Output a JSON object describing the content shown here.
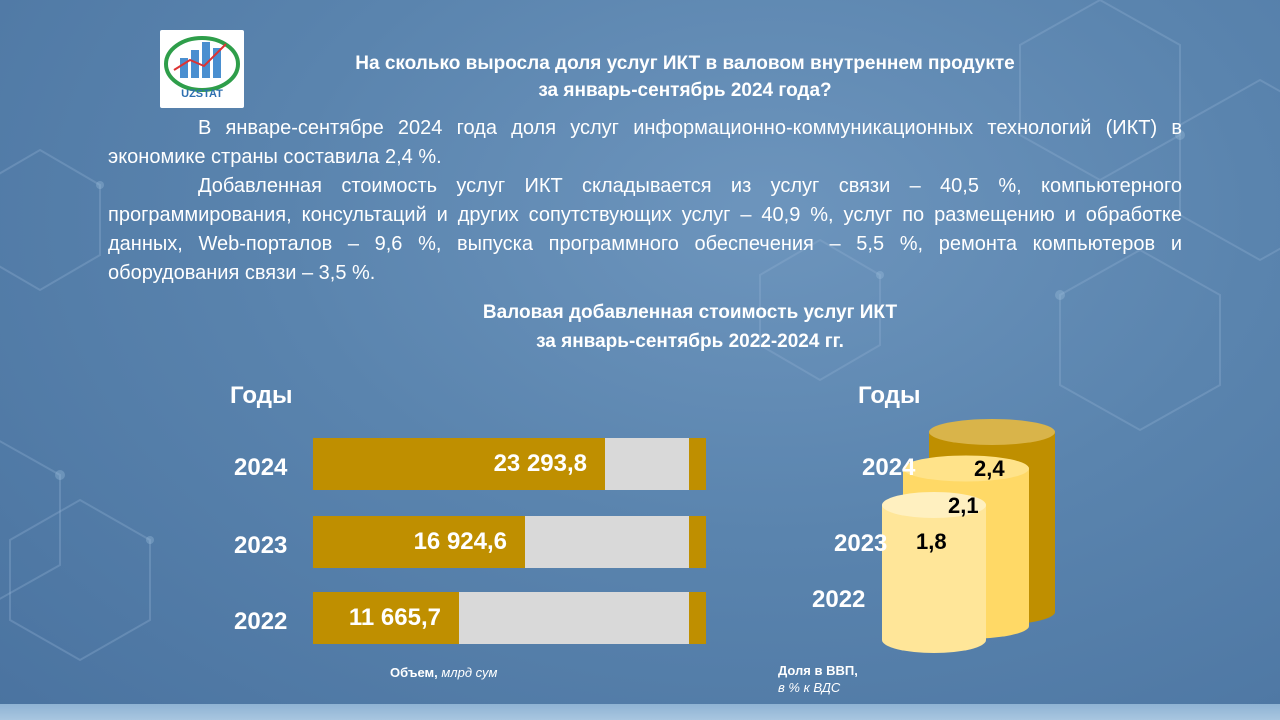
{
  "header": {
    "logo_text": "UZSTAT",
    "title_line1": "На сколько выросла доля услуг ИКТ в валовом внутреннем продукте",
    "title_line2": "за январь-сентябрь 2024 года?"
  },
  "body": {
    "paragraph1": "В январе-сентябре 2024 года доля услуг информационно-коммуникационных технологий (ИКТ) в экономике страны составила 2,4 %.",
    "paragraph2": "Добавленная стоимость услуг ИКТ складывается из услуг связи – 40,5 %, компьютерного программирования, консультаций и других сопутствующих услуг – 40,9 %, услуг по размещению и обработке данных, Web-порталов – 9,6 %, выпуска программного обеспечения – 5,5 %, ремонта компьютеров и оборудования связи – 3,5 %."
  },
  "chart_title": {
    "line1": "Валовая добавленная стоимость услуг ИКТ",
    "line2": "за январь-сентябрь 2022-2024 гг."
  },
  "colors": {
    "bar_fill": "#bf8f00",
    "bar_track": "#d9d9d9",
    "cylinder_2024": "#bf8f00",
    "cylinder_2023": "#ffd966",
    "cylinder_2022": "#ffe699"
  },
  "chart_data": [
    {
      "type": "bar",
      "orientation": "horizontal",
      "axis_header": "Годы",
      "categories": [
        "2024",
        "2023",
        "2022"
      ],
      "values": [
        23293.8,
        16924.6,
        11665.7
      ],
      "value_labels": [
        "23 293,8",
        "16 924,6",
        "11 665,7"
      ],
      "xlim": [
        0,
        30000
      ],
      "note_bold": "Объем,",
      "note_italic": " млрд сум"
    },
    {
      "type": "bar",
      "style": "3d-cylinder",
      "axis_header": "Годы",
      "categories": [
        "2024",
        "2023",
        "2022"
      ],
      "values": [
        2.4,
        2.1,
        1.8
      ],
      "value_labels": [
        "2,4",
        "2,1",
        "1,8"
      ],
      "note_bold": "Доля в ВВП,",
      "note_italic": "в % к ВДС"
    }
  ]
}
